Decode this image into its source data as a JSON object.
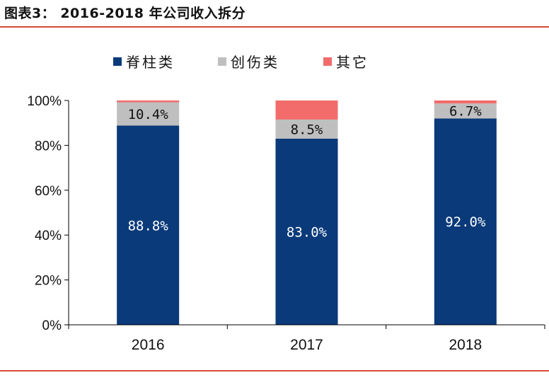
{
  "figure_title": "图表3：  2016-2018 年公司收入拆分",
  "chart_data": {
    "type": "bar",
    "stacked": true,
    "categories": [
      "2016",
      "2017",
      "2018"
    ],
    "series": [
      {
        "name": "脊柱类",
        "color": "#0b3a7a",
        "values": [
          88.8,
          83.0,
          92.0
        ],
        "labels": [
          "88.8%",
          "83.0%",
          "92.0%"
        ]
      },
      {
        "name": "创伤类",
        "color": "#bfbfbf",
        "values": [
          10.4,
          8.5,
          6.7
        ],
        "labels": [
          "10.4%",
          "8.5%",
          "6.7%"
        ]
      },
      {
        "name": "其它",
        "color": "#f26c6c",
        "values": [
          0.8,
          8.5,
          1.3
        ],
        "labels": [
          "",
          "",
          ""
        ]
      }
    ],
    "ylim": [
      0,
      100
    ],
    "yticks": [
      0,
      20,
      40,
      60,
      80,
      100
    ],
    "ytick_labels": [
      "0%",
      "20%",
      "40%",
      "60%",
      "80%",
      "100%"
    ],
    "grid": false,
    "legend_position": "top"
  }
}
